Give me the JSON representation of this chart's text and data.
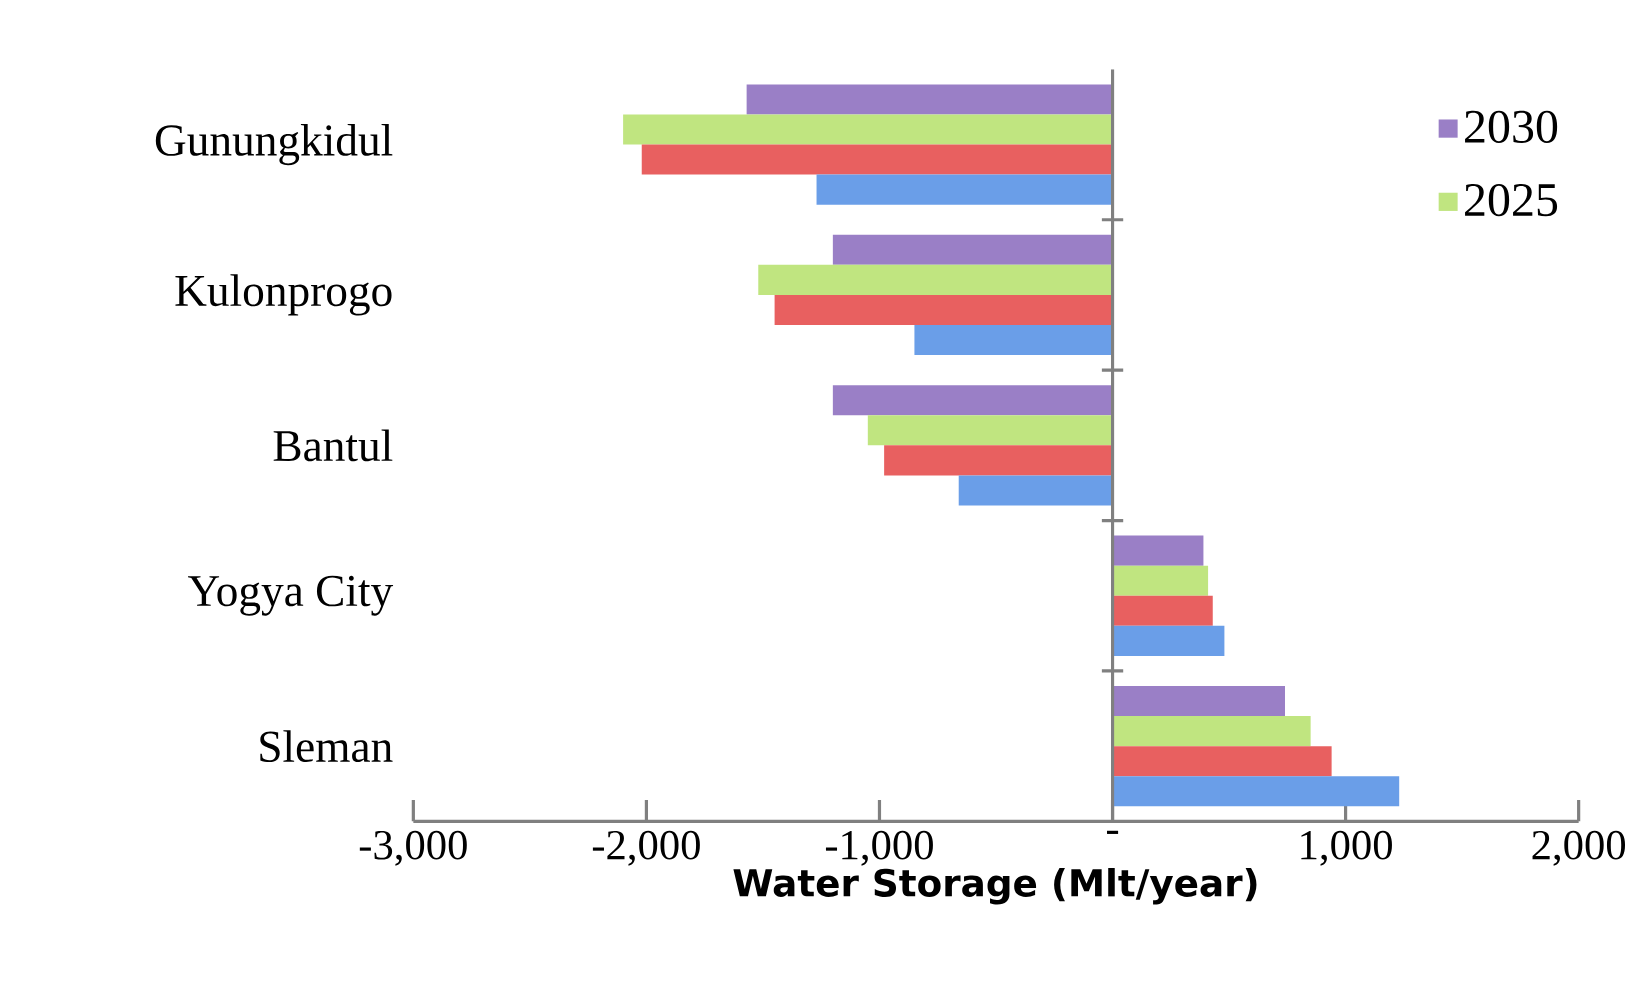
{
  "chart_data": {
    "type": "bar",
    "orientation": "horizontal",
    "xlabel": "Water Storage (Mlt/year)",
    "categories": [
      "Gunungkidul",
      "Kulonprogo",
      "Bantul",
      "Yogya City",
      "Sleman"
    ],
    "series": [
      {
        "name": "2030",
        "color": "#9a7fc6",
        "values": [
          -1570,
          -1200,
          -1200,
          390,
          740
        ]
      },
      {
        "name": "2025",
        "color": "#c0e580",
        "values": [
          -2100,
          -1520,
          -1050,
          410,
          850
        ]
      },
      {
        "color": "#e86060",
        "values": [
          -2020,
          -1450,
          -980,
          430,
          940
        ]
      },
      {
        "color": "#6a9ee8",
        "values": [
          -1270,
          -850,
          -660,
          480,
          1230
        ]
      }
    ],
    "xlim": [
      -3000,
      2000
    ],
    "xticks": [
      {
        "value": -3000,
        "label": "-3,000"
      },
      {
        "value": -2000,
        "label": "-2,000"
      },
      {
        "value": -1000,
        "label": "-1,000"
      },
      {
        "value": 0,
        "label": "-"
      },
      {
        "value": 1000,
        "label": "1,000"
      },
      {
        "value": 2000,
        "label": "2,000"
      }
    ],
    "ref_lines": [
      {
        "axis": "x",
        "value": 0,
        "color": "#808080"
      }
    ],
    "grid": false,
    "legend": "top right"
  }
}
